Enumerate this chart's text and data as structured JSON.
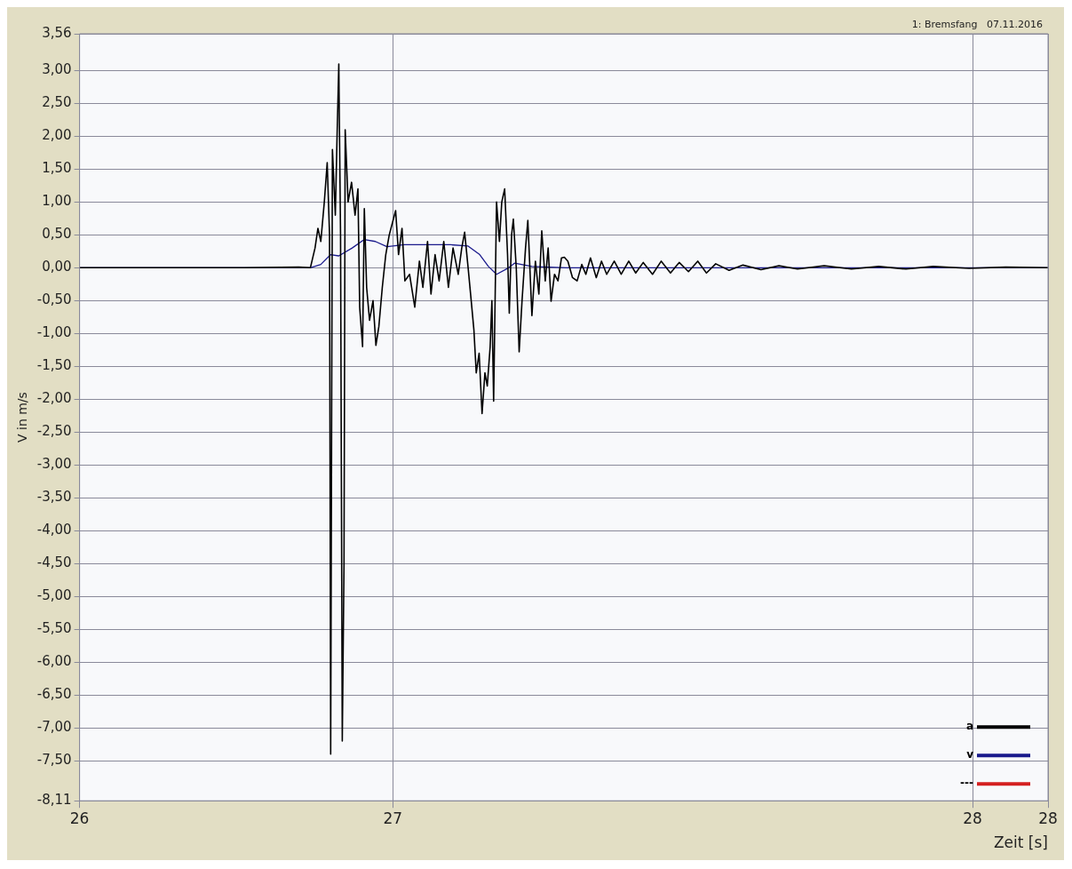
{
  "chart_data": {
    "type": "line",
    "title": "1: Bremsfang   07.11.2016",
    "xlabel": "Zeit [s]",
    "ylabel": "V in m/s",
    "xlim": [
      26.46,
      28.13
    ],
    "ylim": [
      -8.11,
      3.56
    ],
    "xticks": [
      {
        "value": 26.46,
        "label": "26"
      },
      27,
      28,
      {
        "value": 28.13,
        "label": "28"
      }
    ],
    "yticks": [
      {
        "value": 3.56,
        "label": "3,56"
      },
      {
        "value": 3,
        "label": "3,00"
      },
      {
        "value": 2.5,
        "label": "2,50"
      },
      {
        "value": 2,
        "label": "2,00"
      },
      {
        "value": 1.5,
        "label": "1,50"
      },
      {
        "value": 1,
        "label": "1,00"
      },
      {
        "value": 0.5,
        "label": "0,50"
      },
      {
        "value": 0,
        "label": "0,00"
      },
      {
        "value": -0.5,
        "label": "-0,50"
      },
      {
        "value": -1,
        "label": "-1,00"
      },
      {
        "value": -1.5,
        "label": "-1,50"
      },
      {
        "value": -2,
        "label": "-2,00"
      },
      {
        "value": -2.5,
        "label": "-2,50"
      },
      {
        "value": -3,
        "label": "-3,00"
      },
      {
        "value": -3.5,
        "label": "-3,50"
      },
      {
        "value": -4,
        "label": "-4,00"
      },
      {
        "value": -4.5,
        "label": "-4,50"
      },
      {
        "value": -5,
        "label": "-5,00"
      },
      {
        "value": -5.5,
        "label": "-5,50"
      },
      {
        "value": -6,
        "label": "-6,00"
      },
      {
        "value": -6.5,
        "label": "-6,50"
      },
      {
        "value": -7,
        "label": "-7,00"
      },
      {
        "value": -7.5,
        "label": "-7,50"
      },
      {
        "value": -8.11,
        "label": "-8,11"
      }
    ],
    "grid": true,
    "legend": "bottom right",
    "marker": "none",
    "series": [
      {
        "name": "a",
        "color": "#000000",
        "x": [
          26.46,
          26.744,
          26.838,
          26.858,
          26.866,
          26.871,
          26.876,
          26.882,
          26.887,
          26.891,
          26.893,
          26.896,
          26.901,
          26.904,
          26.907,
          26.91,
          26.913,
          26.916,
          26.918,
          26.923,
          26.929,
          26.935,
          26.94,
          26.943,
          26.948,
          26.951,
          26.955,
          26.96,
          26.966,
          26.971,
          26.976,
          26.982,
          26.988,
          26.994,
          27.005,
          27.01,
          27.016,
          27.021,
          27.029,
          27.038,
          27.046,
          27.052,
          27.06,
          27.066,
          27.073,
          27.08,
          27.088,
          27.096,
          27.104,
          27.113,
          27.119,
          27.124,
          27.13,
          27.135,
          27.14,
          27.144,
          27.149,
          27.154,
          27.159,
          27.163,
          27.168,
          27.171,
          27.174,
          27.179,
          27.184,
          27.188,
          27.193,
          27.198,
          27.201,
          27.205,
          27.208,
          27.213,
          27.218,
          27.223,
          27.229,
          27.233,
          27.24,
          27.246,
          27.252,
          27.257,
          27.263,
          27.268,
          27.273,
          27.279,
          27.285,
          27.291,
          27.296,
          27.302,
          27.31,
          27.318,
          27.326,
          27.333,
          27.341,
          27.351,
          27.36,
          27.369,
          27.382,
          27.394,
          27.407,
          27.419,
          27.432,
          27.448,
          27.463,
          27.479,
          27.494,
          27.51,
          27.526,
          27.541,
          27.557,
          27.58,
          27.604,
          27.635,
          27.666,
          27.698,
          27.744,
          27.791,
          27.838,
          27.885,
          27.932,
          27.994,
          28.057,
          28.13
        ],
        "values": [
          0,
          0,
          0.01,
          0,
          0.3,
          0.6,
          0.4,
          1.0,
          1.6,
          0.5,
          -7.4,
          1.8,
          0.8,
          2.0,
          3.1,
          0.5,
          -7.2,
          -4.5,
          2.1,
          1.0,
          1.3,
          0.8,
          1.2,
          -0.6,
          -1.2,
          0.9,
          -0.3,
          -0.8,
          -0.5,
          -1.18,
          -0.9,
          -0.3,
          0.2,
          0.5,
          0.87,
          0.2,
          0.6,
          -0.2,
          -0.1,
          -0.6,
          0.1,
          -0.3,
          0.4,
          -0.4,
          0.2,
          -0.2,
          0.4,
          -0.3,
          0.3,
          -0.1,
          0.3,
          0.54,
          0,
          -0.47,
          -0.95,
          -1.6,
          -1.3,
          -2.22,
          -1.6,
          -1.8,
          -1.2,
          -0.5,
          -2.03,
          1.0,
          0.4,
          1.0,
          1.2,
          0.2,
          -0.69,
          0.5,
          0.74,
          0,
          -1.28,
          -0.5,
          0.3,
          0.72,
          -0.73,
          0.1,
          -0.4,
          0.56,
          -0.2,
          0.3,
          -0.51,
          -0.1,
          -0.2,
          0.15,
          0.16,
          0.1,
          -0.15,
          -0.2,
          0.05,
          -0.1,
          0.15,
          -0.15,
          0.1,
          -0.1,
          0.1,
          -0.1,
          0.1,
          -0.08,
          0.08,
          -0.1,
          0.1,
          -0.08,
          0.08,
          -0.06,
          0.1,
          -0.08,
          0.06,
          -0.04,
          0.04,
          -0.03,
          0.03,
          -0.02,
          0.03,
          -0.02,
          0.02,
          -0.02,
          0.02,
          -0.01,
          0.01,
          0
        ]
      },
      {
        "name": "v",
        "color": "#1a1a8c",
        "x": [
          26.46,
          26.858,
          26.876,
          26.893,
          26.907,
          26.93,
          26.951,
          26.97,
          26.99,
          27.02,
          27.1,
          27.13,
          27.15,
          27.165,
          27.179,
          27.2,
          27.21,
          27.24,
          27.3,
          28.13
        ],
        "values": [
          0,
          0,
          0.05,
          0.2,
          0.18,
          0.3,
          0.43,
          0.4,
          0.32,
          0.35,
          0.35,
          0.33,
          0.2,
          0.02,
          -0.1,
          0,
          0.07,
          0.02,
          0,
          0
        ]
      },
      {
        "name": "---",
        "color": "#d42020"
      }
    ]
  }
}
